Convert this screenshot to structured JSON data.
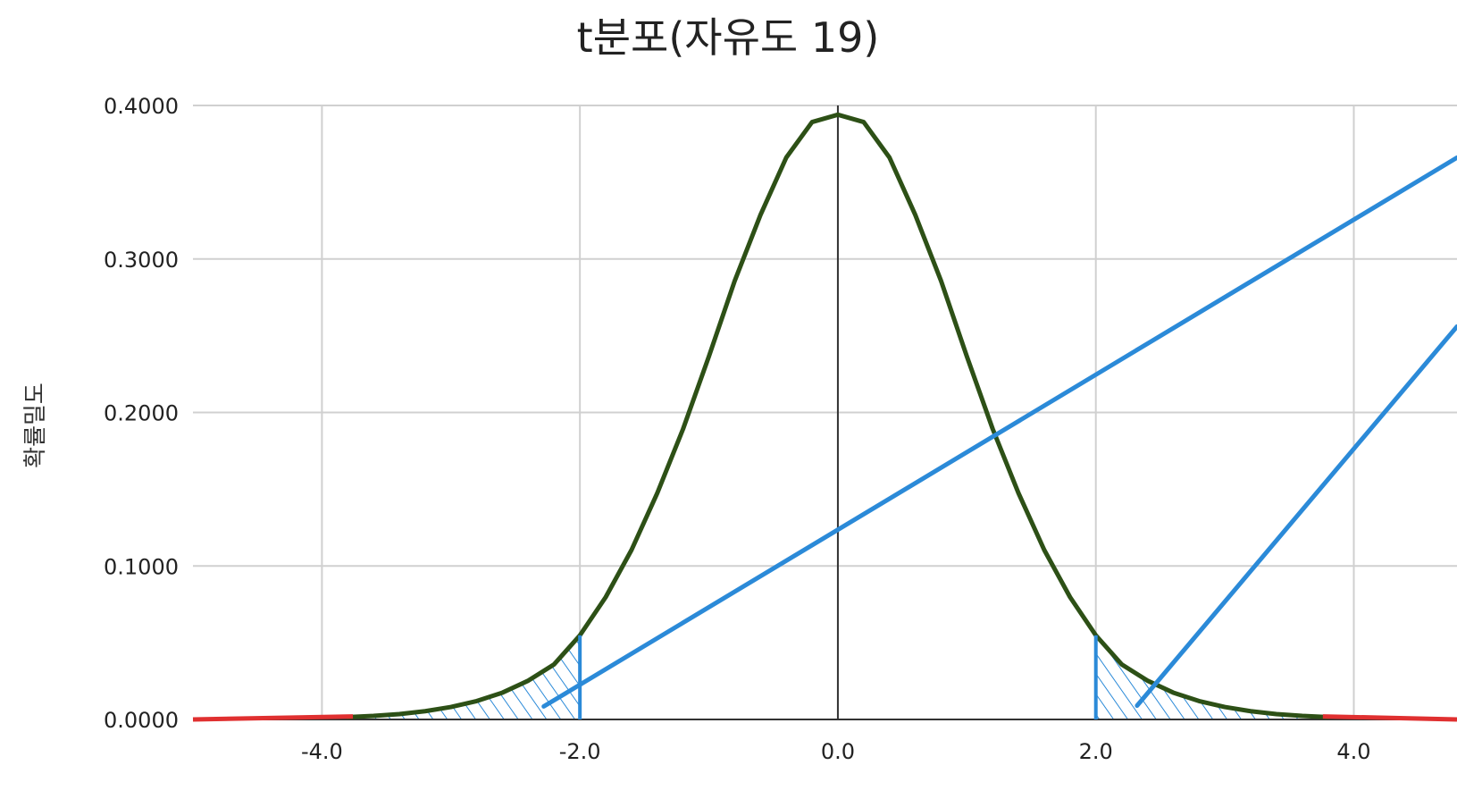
{
  "chart_data": {
    "type": "line",
    "title": "t분포(자유도 19)",
    "xlabel": "",
    "ylabel": "확률밀도",
    "degrees_of_freedom": 19,
    "xlim": [
      -5.0,
      4.8
    ],
    "ylim": [
      0.0,
      0.4
    ],
    "x_ticks": [
      -4.0,
      -2.0,
      0.0,
      2.0,
      4.0
    ],
    "x_tick_labels": [
      "-4.0",
      "-2.0",
      "0.0",
      "2.0",
      "4.0"
    ],
    "y_ticks": [
      0.0,
      0.1,
      0.2,
      0.3,
      0.4
    ],
    "y_tick_labels": [
      "0.0000",
      "0.1000",
      "0.2000",
      "0.3000",
      "0.4000"
    ],
    "grid": true,
    "series": [
      {
        "color": "#2d5016",
        "x": [
          -3.8,
          -3.6,
          -3.4,
          -3.2,
          -3.0,
          -2.8,
          -2.6,
          -2.4,
          -2.2,
          -2.0,
          -1.8,
          -1.6,
          -1.4,
          -1.2,
          -1.0,
          -0.8,
          -0.6,
          -0.4,
          -0.2,
          0.0,
          0.2,
          0.4,
          0.6,
          0.8,
          1.0,
          1.2,
          1.4,
          1.6,
          1.8,
          2.0,
          2.2,
          2.4,
          2.6,
          2.8,
          3.0,
          3.2,
          3.4,
          3.6,
          3.8
        ],
        "y": [
          0.0015,
          0.0023,
          0.0035,
          0.0054,
          0.0081,
          0.012,
          0.0175,
          0.0253,
          0.0359,
          0.0548,
          0.0797,
          0.1104,
          0.1475,
          0.1893,
          0.2365,
          0.2857,
          0.3287,
          0.3661,
          0.3892,
          0.394,
          0.3892,
          0.3661,
          0.3287,
          0.2857,
          0.2365,
          0.1893,
          0.1475,
          0.1104,
          0.0797,
          0.0548,
          0.0359,
          0.0253,
          0.0175,
          0.012,
          0.0081,
          0.0054,
          0.0035,
          0.0023,
          0.0015
        ]
      }
    ],
    "shaded_regions": [
      {
        "from": -5.0,
        "to": -2.0,
        "fill": "#2b8ad8"
      },
      {
        "from": 2.0,
        "to": 4.8,
        "fill": "#2b8ad8"
      }
    ],
    "critical_lines": [
      {
        "x": -2.0,
        "y_top": 0.0548,
        "color": "#2b8ad8"
      },
      {
        "x": 2.0,
        "y_top": 0.0548,
        "color": "#2b8ad8"
      }
    ],
    "red_tail_segments": [
      {
        "x1": -5.0,
        "y1": 0.0,
        "x2": -3.76,
        "y2": 0.002,
        "color": "#e03030"
      },
      {
        "x1": 3.76,
        "y1": 0.002,
        "x2": 4.8,
        "y2": 0.0,
        "color": "#e03030"
      }
    ],
    "annotation_lines": [
      {
        "x1": -2.28,
        "y1": 0.0085,
        "x2": 4.8,
        "y2": 0.366,
        "color": "#2b8ad8"
      },
      {
        "x1": 2.32,
        "y1": 0.009,
        "x2": 4.8,
        "y2": 0.256,
        "color": "#2b8ad8"
      }
    ]
  }
}
